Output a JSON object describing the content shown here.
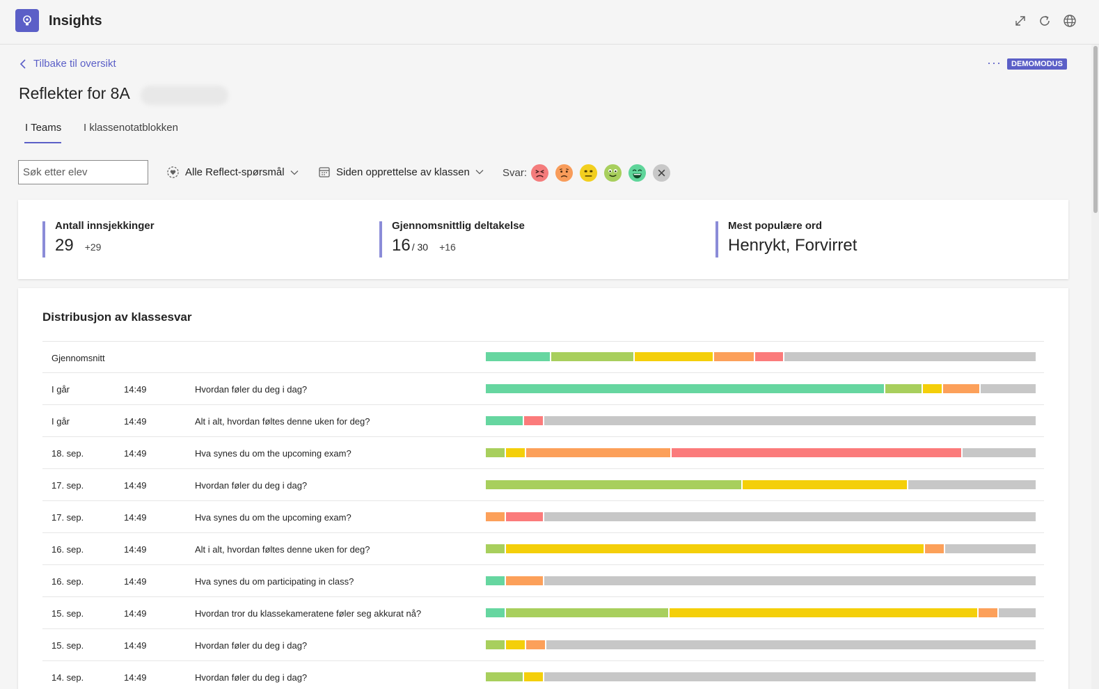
{
  "app": {
    "title": "Insights",
    "logo_icon": "lightbulb-icon"
  },
  "header_actions": [
    {
      "name": "expand-icon",
      "label": "Expand"
    },
    {
      "name": "refresh-icon",
      "label": "Refresh"
    },
    {
      "name": "globe-icon",
      "label": "Open in browser"
    }
  ],
  "nav": {
    "back_label": "Tilbake til oversikt"
  },
  "page": {
    "title": "Reflekter for 8A",
    "more_label": "···",
    "demo_badge": "DEMOMODUS"
  },
  "tabs": [
    {
      "label": "I Teams",
      "active": true
    },
    {
      "label": "I klassenotatblokken",
      "active": false
    }
  ],
  "filters": {
    "search_placeholder": "Søk etter elev",
    "questions_label": "Alle Reflect-spørsmål",
    "period_label": "Siden opprettelse av klassen",
    "answers_label": "Svar:"
  },
  "emotions": [
    {
      "name": "furious",
      "color": "#f47c7c"
    },
    {
      "name": "sad",
      "color": "#f89c5a"
    },
    {
      "name": "neutral",
      "color": "#f2cf1f"
    },
    {
      "name": "good",
      "color": "#a8cf5d"
    },
    {
      "name": "great",
      "color": "#5fd59a"
    },
    {
      "name": "none",
      "color": "#c8c8c8"
    }
  ],
  "stats": {
    "checkins": {
      "label": "Antall innsjekkinger",
      "value": "29",
      "delta": "+29"
    },
    "participation": {
      "label": "Gjennomsnittlig deltakelse",
      "value": "16",
      "total": "/ 30",
      "delta": "+16"
    },
    "popular_words": {
      "label": "Mest populære ord",
      "value": "Henrykt, Forvirret"
    }
  },
  "distribution": {
    "title": "Distribusjon av klassesvar",
    "colors": {
      "green": "#66d6a0",
      "lime": "#a8cf5d",
      "yellow": "#f4cf0a",
      "orange": "#fca05a",
      "red": "#fb7b7b",
      "gray": "#c7c7c7"
    },
    "average": {
      "label": "Gjennomsnitt",
      "segments": [
        [
          "green",
          93
        ],
        [
          "lime",
          118
        ],
        [
          "yellow",
          113
        ],
        [
          "orange",
          57
        ],
        [
          "red",
          41
        ],
        [
          "gray",
          363
        ]
      ]
    },
    "rows": [
      {
        "date": "I går",
        "time": "14:49",
        "question": "Hvordan føler du deg i dag?",
        "segments": [
          [
            "green",
            573
          ],
          [
            "lime",
            53
          ],
          [
            "yellow",
            27
          ],
          [
            "orange",
            52
          ],
          [
            "gray",
            79
          ]
        ]
      },
      {
        "date": "I går",
        "time": "14:49",
        "question": "Alt i alt, hvordan føltes denne uken for deg?",
        "segments": [
          [
            "green",
            53
          ],
          [
            "red",
            27
          ],
          [
            "gray",
            706
          ]
        ]
      },
      {
        "date": "18. sep.",
        "time": "14:49",
        "question": "Hva synes du om the upcoming exam?",
        "segments": [
          [
            "lime",
            27
          ],
          [
            "yellow",
            27
          ],
          [
            "orange",
            207
          ],
          [
            "red",
            417
          ],
          [
            "gray",
            105
          ]
        ]
      },
      {
        "date": "17. sep.",
        "time": "14:49",
        "question": "Hvordan føler du deg i dag?",
        "segments": [
          [
            "lime",
            367
          ],
          [
            "yellow",
            237
          ],
          [
            "gray",
            183
          ]
        ]
      },
      {
        "date": "17. sep.",
        "time": "14:49",
        "question": "Hva synes du om the upcoming exam?",
        "segments": [
          [
            "orange",
            27
          ],
          [
            "red",
            53
          ],
          [
            "gray",
            706
          ]
        ]
      },
      {
        "date": "16. sep.",
        "time": "14:49",
        "question": "Alt i alt, hvordan føltes denne uken for deg?",
        "segments": [
          [
            "lime",
            27
          ],
          [
            "yellow",
            600
          ],
          [
            "orange",
            27
          ],
          [
            "gray",
            130
          ]
        ]
      },
      {
        "date": "16. sep.",
        "time": "14:49",
        "question": "Hva synes du om participating in class?",
        "segments": [
          [
            "green",
            27
          ],
          [
            "orange",
            53
          ],
          [
            "gray",
            706
          ]
        ]
      },
      {
        "date": "15. sep.",
        "time": "14:49",
        "question": "Hvordan tror du klassekameratene føler seg akkurat nå?",
        "segments": [
          [
            "green",
            27
          ],
          [
            "lime",
            234
          ],
          [
            "yellow",
            443
          ],
          [
            "orange",
            27
          ],
          [
            "gray",
            53
          ]
        ]
      },
      {
        "date": "15. sep.",
        "time": "14:49",
        "question": "Hvordan føler du deg i dag?",
        "segments": [
          [
            "lime",
            27
          ],
          [
            "yellow",
            27
          ],
          [
            "orange",
            27
          ],
          [
            "gray",
            704
          ]
        ]
      },
      {
        "date": "14. sep.",
        "time": "14:49",
        "question": "Hvordan føler du deg i dag?",
        "segments": [
          [
            "lime",
            53
          ],
          [
            "yellow",
            27
          ],
          [
            "gray",
            706
          ]
        ]
      }
    ]
  }
}
